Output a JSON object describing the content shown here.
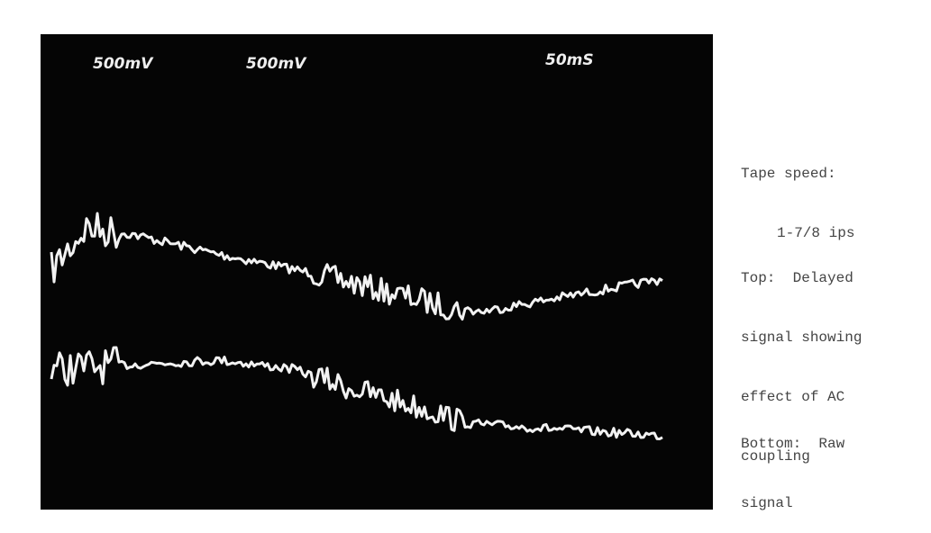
{
  "photo": {
    "labels": [
      "500mV",
      "500mV",
      "50mS"
    ]
  },
  "notes": {
    "tape_speed": [
      "Tape speed:",
      "1-7/8 ips"
    ],
    "top": [
      "Top:  Delayed",
      "signal showing",
      "effect of AC",
      "coupling"
    ],
    "bottom": [
      "Bottom:  Raw",
      "signal"
    ]
  }
}
